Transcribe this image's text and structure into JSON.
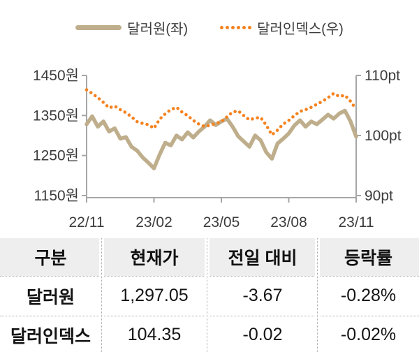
{
  "chart_data": {
    "type": "line",
    "title": "",
    "legend": [
      {
        "label": "달러원(좌)",
        "color": "#bfae8c",
        "style": "solid",
        "axis": "left"
      },
      {
        "label": "달러인덱스(우)",
        "color": "#f5821f",
        "style": "dotted",
        "axis": "right"
      }
    ],
    "x_ticks": [
      "22/11",
      "23/02",
      "23/05",
      "23/08",
      "23/11"
    ],
    "left_axis": {
      "label_unit": "원",
      "ticks": [
        "1450원",
        "1350원",
        "1250원",
        "1150원"
      ],
      "min": 1150,
      "max": 1450
    },
    "right_axis": {
      "label_unit": "pt",
      "ticks": [
        "110pt",
        "100pt",
        "90pt"
      ],
      "min": 90,
      "max": 110
    },
    "grid": false,
    "legend_position": "top",
    "series": [
      {
        "name": "달러원(좌)",
        "axis": "left",
        "style": "solid",
        "color": "#bfae8c",
        "values": [
          1328,
          1348,
          1322,
          1335,
          1310,
          1318,
          1292,
          1296,
          1272,
          1262,
          1245,
          1232,
          1218,
          1252,
          1282,
          1275,
          1300,
          1290,
          1308,
          1295,
          1310,
          1322,
          1338,
          1326,
          1335,
          1342,
          1322,
          1298,
          1285,
          1272,
          1300,
          1288,
          1258,
          1242,
          1280,
          1292,
          1305,
          1325,
          1338,
          1322,
          1335,
          1328,
          1340,
          1352,
          1342,
          1355,
          1362,
          1335,
          1297
        ]
      },
      {
        "name": "달러인덱스(우)",
        "axis": "right",
        "style": "dotted",
        "color": "#f5821f",
        "values": [
          107.6,
          107.0,
          106.3,
          105.5,
          104.6,
          104.9,
          104.3,
          103.8,
          103.1,
          102.3,
          102.0,
          101.8,
          101.2,
          102.7,
          103.6,
          104.3,
          104.7,
          103.9,
          103.3,
          102.5,
          101.9,
          101.5,
          101.7,
          102.0,
          102.3,
          103.1,
          103.9,
          104.1,
          103.3,
          102.6,
          102.9,
          103.0,
          101.7,
          100.1,
          100.9,
          101.9,
          102.5,
          103.3,
          104.0,
          104.3,
          104.7,
          105.2,
          105.7,
          106.3,
          107.0,
          106.5,
          106.7,
          105.7,
          104.35
        ]
      }
    ]
  },
  "table": {
    "headers": [
      "구분",
      "현재가",
      "전일 대비",
      "등락률"
    ],
    "rows": [
      {
        "name": "달러원",
        "price": "1,297.05",
        "change": "-3.67",
        "pct": "-0.28%"
      },
      {
        "name": "달러인덱스",
        "price": "104.35",
        "change": "-0.02",
        "pct": "-0.02%"
      }
    ]
  },
  "colors": {
    "krw_line": "#bfae8c",
    "dxy_line": "#f5821f",
    "axis": "#a6a6a6",
    "axis_text": "#3c3c3c",
    "table_header_bg": "#eeeeee",
    "table_border": "#ababab",
    "table_text": "#141414"
  }
}
